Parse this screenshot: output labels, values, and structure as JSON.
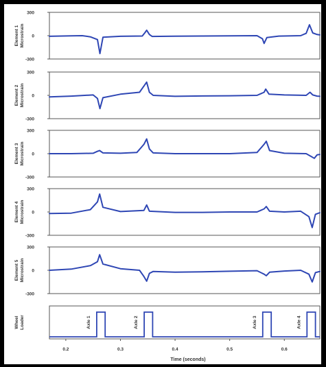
{
  "chart_data": {
    "type": "line",
    "xlabel": "Time (seconds)",
    "x_ticks": [
      "0.2",
      "0.3",
      "0.4",
      "0.5",
      "0.6"
    ],
    "xlim": [
      0.17,
      0.665
    ],
    "series_color": "#2e46b4",
    "panels": [
      {
        "ylabel": [
          "Element 1",
          "Microstrain"
        ],
        "yticks": [
          "300",
          "0",
          "-300"
        ],
        "ylim": [
          -300,
          300
        ],
        "points": [
          [
            0.17,
            -8
          ],
          [
            0.21,
            -3
          ],
          [
            0.23,
            0
          ],
          [
            0.245,
            -15
          ],
          [
            0.258,
            -50
          ],
          [
            0.2625,
            -230
          ],
          [
            0.268,
            -20
          ],
          [
            0.3,
            -8
          ],
          [
            0.34,
            -4
          ],
          [
            0.345,
            40
          ],
          [
            0.348,
            70
          ],
          [
            0.353,
            15
          ],
          [
            0.358,
            -10
          ],
          [
            0.4,
            -6
          ],
          [
            0.45,
            -4
          ],
          [
            0.5,
            -2
          ],
          [
            0.55,
            0
          ],
          [
            0.56,
            -40
          ],
          [
            0.563,
            -100
          ],
          [
            0.568,
            -25
          ],
          [
            0.59,
            -5
          ],
          [
            0.63,
            0
          ],
          [
            0.64,
            30
          ],
          [
            0.646,
            140
          ],
          [
            0.652,
            35
          ],
          [
            0.66,
            15
          ],
          [
            0.665,
            10
          ]
        ]
      },
      {
        "ylabel": [
          "Element 2",
          "Microstrain"
        ],
        "yticks": [
          "300",
          "0",
          "-300"
        ],
        "ylim": [
          -300,
          300
        ],
        "points": [
          [
            0.17,
            -20
          ],
          [
            0.21,
            -10
          ],
          [
            0.25,
            5
          ],
          [
            0.258,
            -40
          ],
          [
            0.2625,
            -170
          ],
          [
            0.268,
            -30
          ],
          [
            0.3,
            15
          ],
          [
            0.335,
            40
          ],
          [
            0.343,
            120
          ],
          [
            0.348,
            170
          ],
          [
            0.353,
            40
          ],
          [
            0.36,
            0
          ],
          [
            0.4,
            -12
          ],
          [
            0.45,
            -8
          ],
          [
            0.5,
            -5
          ],
          [
            0.55,
            0
          ],
          [
            0.563,
            40
          ],
          [
            0.566,
            80
          ],
          [
            0.572,
            15
          ],
          [
            0.6,
            5
          ],
          [
            0.64,
            0
          ],
          [
            0.647,
            40
          ],
          [
            0.652,
            5
          ],
          [
            0.66,
            -10
          ],
          [
            0.665,
            -12
          ]
        ]
      },
      {
        "ylabel": [
          "Element 3",
          "Microstrain"
        ],
        "yticks": [
          "300",
          "0",
          "-300"
        ],
        "ylim": [
          -300,
          300
        ],
        "points": [
          [
            0.17,
            0
          ],
          [
            0.21,
            0
          ],
          [
            0.25,
            5
          ],
          [
            0.258,
            30
          ],
          [
            0.262,
            40
          ],
          [
            0.268,
            10
          ],
          [
            0.3,
            5
          ],
          [
            0.33,
            15
          ],
          [
            0.343,
            120
          ],
          [
            0.348,
            190
          ],
          [
            0.353,
            60
          ],
          [
            0.36,
            10
          ],
          [
            0.4,
            0
          ],
          [
            0.45,
            0
          ],
          [
            0.5,
            0
          ],
          [
            0.55,
            15
          ],
          [
            0.563,
            120
          ],
          [
            0.567,
            160
          ],
          [
            0.573,
            40
          ],
          [
            0.6,
            5
          ],
          [
            0.64,
            0
          ],
          [
            0.65,
            -40
          ],
          [
            0.655,
            -60
          ],
          [
            0.66,
            -15
          ],
          [
            0.665,
            -10
          ]
        ]
      },
      {
        "ylabel": [
          "Element 4",
          "Microstrain"
        ],
        "yticks": [
          "300",
          "0",
          "-300"
        ],
        "ylim": [
          -300,
          300
        ],
        "points": [
          [
            0.17,
            -20
          ],
          [
            0.21,
            -15
          ],
          [
            0.245,
            30
          ],
          [
            0.258,
            130
          ],
          [
            0.262,
            230
          ],
          [
            0.268,
            60
          ],
          [
            0.3,
            5
          ],
          [
            0.343,
            20
          ],
          [
            0.348,
            90
          ],
          [
            0.353,
            10
          ],
          [
            0.4,
            -5
          ],
          [
            0.45,
            -5
          ],
          [
            0.5,
            0
          ],
          [
            0.55,
            0
          ],
          [
            0.563,
            40
          ],
          [
            0.567,
            70
          ],
          [
            0.573,
            10
          ],
          [
            0.6,
            0
          ],
          [
            0.63,
            10
          ],
          [
            0.645,
            -60
          ],
          [
            0.651,
            -200
          ],
          [
            0.657,
            -30
          ],
          [
            0.665,
            -10
          ]
        ]
      },
      {
        "ylabel": [
          "Element 5",
          "Microstrain"
        ],
        "yticks": [
          "300",
          "0",
          "-300"
        ],
        "ylim": [
          -300,
          300
        ],
        "points": [
          [
            0.17,
            0
          ],
          [
            0.21,
            15
          ],
          [
            0.245,
            60
          ],
          [
            0.258,
            110
          ],
          [
            0.262,
            200
          ],
          [
            0.268,
            80
          ],
          [
            0.3,
            20
          ],
          [
            0.335,
            0
          ],
          [
            0.343,
            -80
          ],
          [
            0.348,
            -140
          ],
          [
            0.353,
            -40
          ],
          [
            0.36,
            -15
          ],
          [
            0.4,
            -25
          ],
          [
            0.45,
            -20
          ],
          [
            0.5,
            -12
          ],
          [
            0.55,
            -5
          ],
          [
            0.563,
            -50
          ],
          [
            0.567,
            -70
          ],
          [
            0.573,
            -25
          ],
          [
            0.6,
            -10
          ],
          [
            0.63,
            0
          ],
          [
            0.645,
            -50
          ],
          [
            0.651,
            -150
          ],
          [
            0.657,
            -30
          ],
          [
            0.665,
            -15
          ]
        ]
      }
    ],
    "loader": {
      "ylabel": [
        "Wheel",
        "Loader"
      ],
      "pulses": [
        [
          0.2565,
          0.272
        ],
        [
          0.3435,
          0.359
        ],
        [
          0.5605,
          0.576
        ],
        [
          0.6415,
          0.657
        ]
      ],
      "axle_labels": [
        {
          "text": "Axle 1",
          "x": 0.244
        },
        {
          "text": "Axle 2",
          "x": 0.331
        },
        {
          "text": "Axle 3",
          "x": 0.548
        },
        {
          "text": "Axle 4",
          "x": 0.629
        }
      ]
    }
  }
}
